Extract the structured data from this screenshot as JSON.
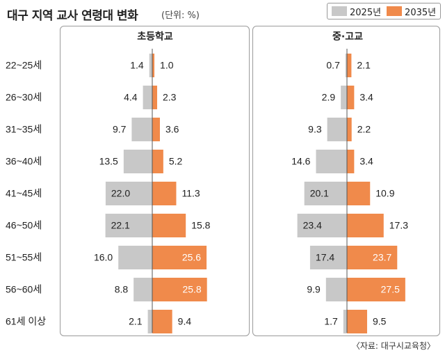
{
  "header": {
    "title": "대구 지역 교사 연령대 변화",
    "unit": "(단위: %)"
  },
  "legend": [
    {
      "label": "2025년",
      "color": "#c8c8c8"
    },
    {
      "label": "2035년",
      "color": "#f08a4b"
    }
  ],
  "source": "〈자료: 대구시교육청〉",
  "chart_data": [
    {
      "type": "bar",
      "title": "초등학교",
      "categories": [
        "22~25세",
        "26~30세",
        "31~35세",
        "36~40세",
        "41~45세",
        "46~50세",
        "51~55세",
        "56~60세",
        "61세 이상"
      ],
      "series": [
        {
          "name": "2025년",
          "values": [
            1.4,
            4.4,
            9.7,
            13.5,
            22.0,
            22.1,
            16.0,
            8.8,
            2.1
          ]
        },
        {
          "name": "2035년",
          "values": [
            1.0,
            2.3,
            3.6,
            5.2,
            11.3,
            15.8,
            25.6,
            25.8,
            9.4
          ]
        }
      ]
    },
    {
      "type": "bar",
      "title": "중·고교",
      "categories": [
        "22~25세",
        "26~30세",
        "31~35세",
        "36~40세",
        "41~45세",
        "46~50세",
        "51~55세",
        "56~60세",
        "61세 이상"
      ],
      "series": [
        {
          "name": "2025년",
          "values": [
            0.7,
            2.9,
            9.3,
            14.6,
            20.1,
            23.4,
            17.4,
            9.9,
            1.7
          ]
        },
        {
          "name": "2035년",
          "values": [
            2.1,
            3.4,
            2.2,
            3.4,
            10.9,
            17.3,
            23.7,
            27.5,
            9.5
          ]
        }
      ]
    }
  ]
}
